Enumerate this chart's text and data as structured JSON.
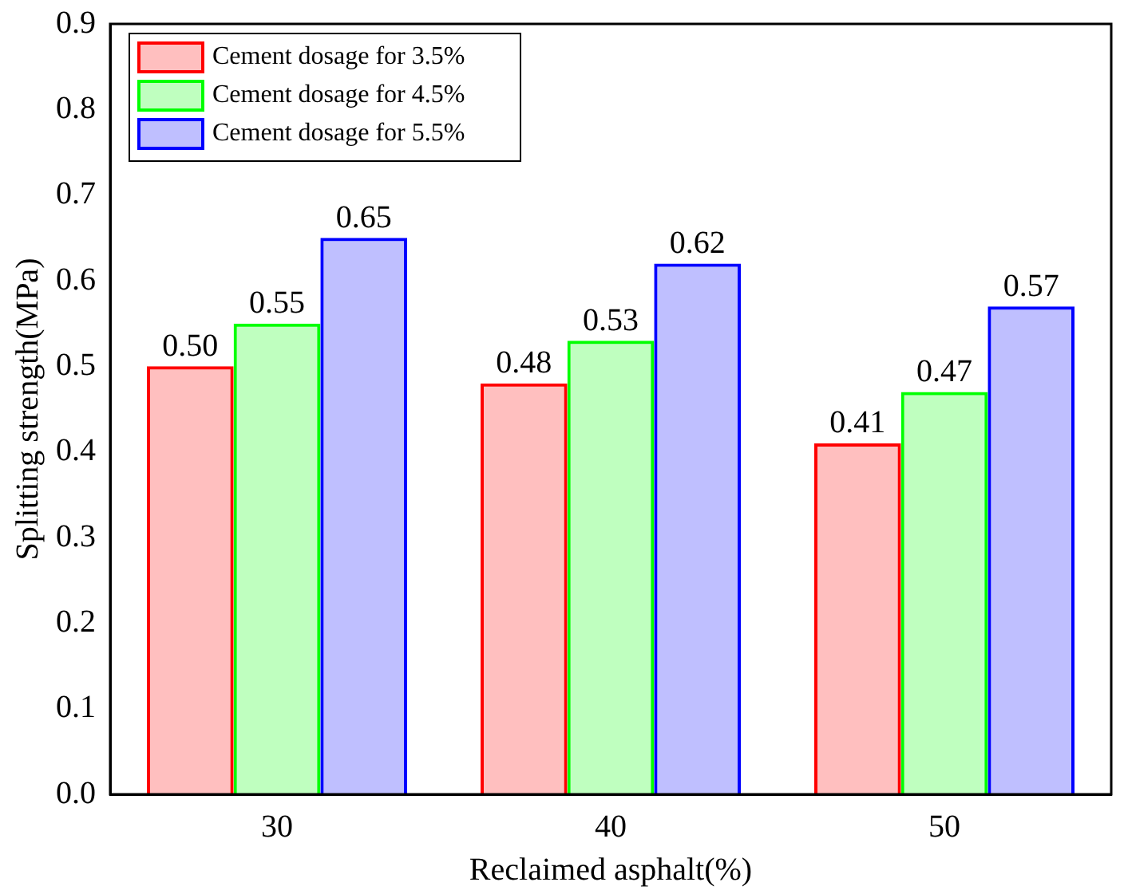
{
  "chart_data": {
    "type": "bar",
    "categories": [
      "30",
      "40",
      "50"
    ],
    "xlabel": "Reclaimed asphalt(%)",
    "ylabel": "Splitting strength(MPa)",
    "series": [
      {
        "name": "Cement dosage for 3.5%",
        "color": "#ff0000",
        "values": [
          0.5,
          0.48,
          0.41
        ],
        "value_labels": [
          "0.50",
          "0.48",
          "0.41"
        ]
      },
      {
        "name": "Cement dosage for 4.5%",
        "color": "#00ff00",
        "values": [
          0.55,
          0.53,
          0.47
        ],
        "value_labels": [
          "0.55",
          "0.53",
          "0.47"
        ]
      },
      {
        "name": "Cement dosage for 5.5%",
        "color": "#0000ff",
        "values": [
          0.65,
          0.62,
          0.57
        ],
        "value_labels": [
          "0.65",
          "0.62",
          "0.57"
        ]
      }
    ],
    "ylim": [
      0,
      0.9
    ],
    "yticks": [
      {
        "value": 0,
        "label": "0.0"
      },
      {
        "value": 0.1,
        "label": "0.1"
      },
      {
        "value": 0.2,
        "label": "0.2"
      },
      {
        "value": 0.3,
        "label": "0.3"
      },
      {
        "value": 0.4,
        "label": "0.4"
      },
      {
        "value": 0.5,
        "label": "0.5"
      },
      {
        "value": 0.6,
        "label": "0.6"
      },
      {
        "value": 0.7,
        "label": "0.7"
      },
      {
        "value": 0.8,
        "label": "0.8"
      },
      {
        "value": 0.9,
        "label": "0.9"
      }
    ],
    "grid": false,
    "legend": "top left"
  }
}
